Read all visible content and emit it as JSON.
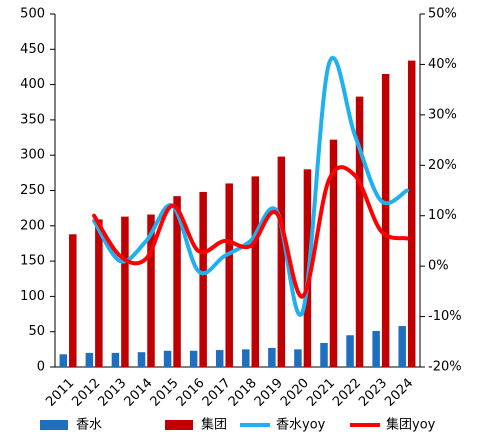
{
  "chart_data": {
    "type": "bar_line",
    "categories": [
      "2011",
      "2012",
      "2013",
      "2014",
      "2015",
      "2016",
      "2017",
      "2018",
      "2019",
      "2020",
      "2021",
      "2022",
      "2023",
      "2024"
    ],
    "series": [
      {
        "name": "香水",
        "color": "#1f6fc0",
        "type": "bar",
        "values": [
          18,
          20,
          20,
          21,
          23,
          23,
          24,
          25,
          27,
          25,
          34,
          45,
          51,
          58
        ]
      },
      {
        "name": "集团",
        "color": "#c00000",
        "type": "bar",
        "values": [
          188,
          209,
          213,
          216,
          242,
          248,
          260,
          270,
          298,
          280,
          322,
          383,
          415,
          434
        ]
      },
      {
        "name": "香水yoy",
        "color": "#1fb0f0",
        "type": "line",
        "axis": "y2",
        "values": [
          null,
          9,
          1,
          5,
          12,
          -1,
          2,
          5,
          11,
          -9,
          40,
          26,
          13,
          15
        ]
      },
      {
        "name": "集团yoy",
        "color": "#ff0000",
        "type": "line",
        "axis": "y2",
        "values": [
          null,
          10,
          2,
          1.5,
          12,
          3,
          5,
          4,
          10.5,
          -6,
          17,
          18,
          7,
          5.5
        ]
      }
    ],
    "ylim": [
      0,
      500
    ],
    "yticks": [
      0,
      50,
      100,
      150,
      200,
      250,
      300,
      350,
      400,
      450,
      500
    ],
    "y2lim": [
      -20,
      50
    ],
    "y2ticks": [
      {
        "value": -20,
        "label": "-20%"
      },
      {
        "value": -10,
        "label": "-10%"
      },
      {
        "value": 0,
        "label": "0%"
      },
      {
        "value": 10,
        "label": "10%"
      },
      {
        "value": 20,
        "label": "20%"
      },
      {
        "value": 30,
        "label": "30%"
      },
      {
        "value": 40,
        "label": "40%"
      },
      {
        "value": 50,
        "label": "50%"
      }
    ]
  }
}
